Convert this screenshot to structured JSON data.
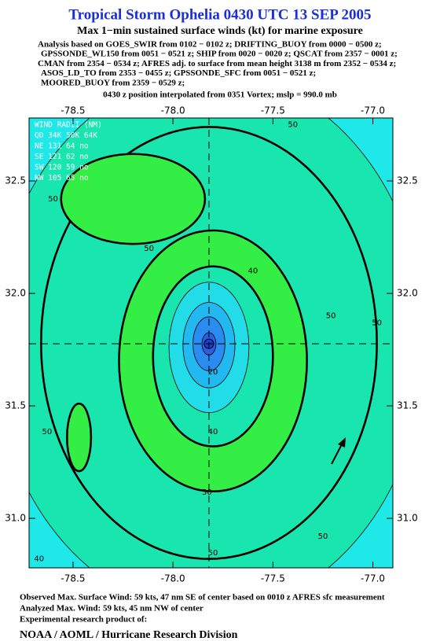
{
  "chart_data": {
    "type": "contour",
    "title": "Tropical Storm Ophelia 0430 UTC 13 SEP 2005",
    "subtitle": "Max 1−min sustained surface winds (kt) for marine exposure",
    "analysis_lines": [
      "Analysis based on  GOES_SWIR from 0102 − 0102 z;  DRIFTING_BUOY from 0000 − 0500 z;",
      "GPSSONDE_WL150 from 0051 − 0521 z;  SHIP from 0020 − 0020 z;  QSCAT from 2357 − 0001 z;",
      "CMAN from 2354 − 0534 z;  AFRES adj. to surface from mean height 3138 m from 2352 − 0534 z;",
      "ASOS_LD_TO from 2353 − 0455 z;  GPSSONDE_SFC from 0051 − 0521 z;",
      "MOORED_BUOY from 2359 − 0529 z;"
    ],
    "position_note": "0430 z position interpolated from 0351 Vortex; mslp = 990.0 mb",
    "wind_radii": [
      "WIND RADII (NM)",
      "QD 34K 50K 64K",
      "NE 131  64  no",
      "SE 121  62  no",
      "SW 120  59  no",
      "NW 105  65  no"
    ],
    "xlim": [
      -78.72,
      -76.9
    ],
    "ylim": [
      30.78,
      32.78
    ],
    "xticks": [
      {
        "value": -78.5,
        "label": "-78.5"
      },
      {
        "value": -78.0,
        "label": "-78.0"
      },
      {
        "value": -77.5,
        "label": "-77.5"
      },
      {
        "value": -77.0,
        "label": "-77.0"
      }
    ],
    "yticks": [
      {
        "value": 32.5,
        "label": "32.5"
      },
      {
        "value": 32.0,
        "label": "32.0"
      },
      {
        "value": 31.5,
        "label": "31.5"
      },
      {
        "value": 31.0,
        "label": "31.0"
      }
    ],
    "background_color": "#1ee8e8",
    "center": {
      "lon": -77.82,
      "lat": 31.776
    },
    "contours": [
      {
        "level": 40,
        "color": "#19e6ae",
        "lon": -77.82,
        "lat": 31.78,
        "rx": 1.08,
        "ry": 1.2
      },
      {
        "level": 50,
        "color": "#19e6ae",
        "lon": -77.82,
        "lat": 31.78,
        "rx": 0.84,
        "ry": 0.96
      },
      {
        "level": 50,
        "color": "#33ee44",
        "lon": -78.2,
        "lat": 32.42,
        "rx": 0.36,
        "ry": 0.2
      },
      {
        "level": 50,
        "color": "#33ee44",
        "lon": -78.47,
        "lat": 31.36,
        "rx": 0.06,
        "ry": 0.15
      },
      {
        "level": 50,
        "color": "#33ee44",
        "lon": -77.8,
        "lat": 31.7,
        "rx": 0.47,
        "ry": 0.58
      },
      {
        "level": 50,
        "color": "#19e6ae",
        "lon": -77.8,
        "lat": 31.72,
        "rx": 0.3,
        "ry": 0.4
      },
      {
        "level": 40,
        "color": "#22dde8",
        "lon": -77.82,
        "lat": 31.76,
        "rx": 0.2,
        "ry": 0.29
      },
      {
        "level": 30,
        "color": "#22b8f0",
        "lon": -77.82,
        "lat": 31.77,
        "rx": 0.13,
        "ry": 0.19
      },
      {
        "level": 20,
        "color": "#2a8cf0",
        "lon": -77.82,
        "lat": 31.776,
        "rx": 0.08,
        "ry": 0.12
      },
      {
        "level": 10,
        "color": "#2a5ee0",
        "lon": -77.82,
        "lat": 31.776,
        "rx": 0.035,
        "ry": 0.05
      }
    ],
    "contour_labels": [
      {
        "value": 50,
        "lon": -77.4,
        "lat": 32.75
      },
      {
        "value": 50,
        "lon": -78.6,
        "lat": 32.42
      },
      {
        "value": 50,
        "lon": -78.12,
        "lat": 32.2
      },
      {
        "value": 40,
        "lon": -77.6,
        "lat": 32.1
      },
      {
        "value": 50,
        "lon": -77.21,
        "lat": 31.9
      },
      {
        "value": 50,
        "lon": -76.98,
        "lat": 31.87
      },
      {
        "value": 20,
        "lon": -77.8,
        "lat": 31.65
      },
      {
        "value": 40,
        "lon": -77.8,
        "lat": 31.385
      },
      {
        "value": 50,
        "lon": -77.83,
        "lat": 31.115
      },
      {
        "value": 50,
        "lon": -78.63,
        "lat": 31.385
      },
      {
        "value": 50,
        "lon": -77.25,
        "lat": 30.92
      },
      {
        "value": 50,
        "lon": -77.8,
        "lat": 30.846
      },
      {
        "value": 40,
        "lon": -78.67,
        "lat": 30.82
      }
    ],
    "footer_lines": [
      "Observed Max. Surface Wind: 59 kts, 47 nm SE of center based on 0010 z AFRES sfc measurement",
      "Analyzed Max. Wind: 59 kts, 45 nm NW of center",
      "Experimental research product of:"
    ],
    "credit": "NOAA / AOML / Hurricane Research Division"
  }
}
